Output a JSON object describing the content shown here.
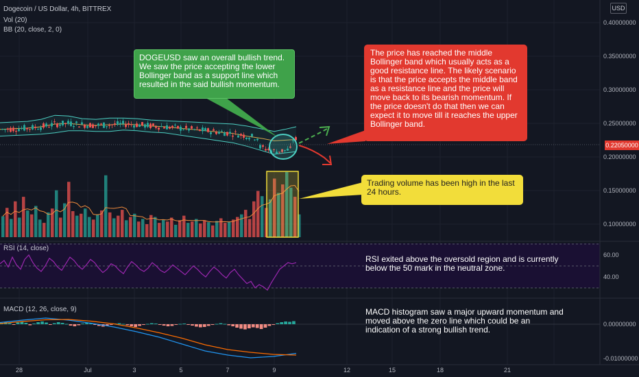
{
  "header": {
    "symbol_line": "Dogecoin / US Dollar, 4h, BITTREX",
    "vol_line": "Vol (20)",
    "bb_line": "BB (20, close, 2, 0)",
    "rsi_line": "RSI (14, close)",
    "macd_line": "MACD (12, 26, close, 9)",
    "currency_button": "USD"
  },
  "colors": {
    "background": "#131722",
    "bull": "#26a69a",
    "bear": "#ef5350",
    "band": "#4dd0c3",
    "middle_band": "#d6a84c",
    "rsi_line": "#9c27b0",
    "rsi_bg": "#1a1033",
    "annotation_green": "#3fa24a",
    "annotation_red": "#e2392f",
    "annotation_yellow": "#f2dd3a"
  },
  "annotations": {
    "green": "DOGEUSD saw an overall bullish trend. We saw the price accepting the lower Bollinger band as a support line which resulted in the said bullish momentum.",
    "red": "The price has reached the middle Bollinger band which usually acts as a good resistance line. The likely scenario is that the price accepts the middle band as a resistance line and the price will move back to its bearish momentum. If the price doesn't do that then we can expect it to move till it reaches the upper Bollinger band.",
    "yellow": "Trading volume has been high in the last 24 hours.",
    "rsi": "RSI exited above the oversold region and is currently below the 50 mark in the neutral zone.",
    "macd": "MACD histogram saw a major upward momentum and moved above the zero line which could be an indication of a strong bullish trend."
  },
  "chart_data": [
    {
      "type": "line",
      "title": "Dogecoin / US Dollar, 4h, BITTREX",
      "description_kind": "candlestick with Bollinger Bands",
      "x_ticks": [
        "28",
        "Jul",
        "3",
        "5",
        "7",
        "9",
        "12",
        "15",
        "18",
        "21"
      ],
      "y_ticks": [
        "0.40000000",
        "0.35000000",
        "0.30000000",
        "0.25000000",
        "0.20000000",
        "0.15000000",
        "0.10000000"
      ],
      "ylim": [
        0.08,
        0.42
      ],
      "last_price": "0.22050000",
      "series": [
        {
          "name": "BB (20, close, 2, 0)",
          "points": [
            [
              0,
              0.251
            ],
            [
              20,
              0.252
            ],
            [
              40,
              0.253
            ],
            [
              60,
              0.256
            ],
            [
              80,
              0.262
            ],
            [
              100,
              0.261
            ],
            [
              120,
              0.257
            ],
            [
              140,
              0.256
            ],
            [
              160,
              0.258
            ],
            [
              180,
              0.258
            ],
            [
              200,
              0.257
            ],
            [
              220,
              0.255
            ],
            [
              240,
              0.254
            ],
            [
              260,
              0.253
            ],
            [
              280,
              0.252
            ],
            [
              300,
              0.251
            ],
            [
              320,
              0.25
            ],
            [
              340,
              0.249
            ],
            [
              360,
              0.246
            ],
            [
              380,
              0.242
            ],
            [
              400,
              0.238
            ],
            [
              415,
              0.241
            ],
            [
              432,
              0.245
            ]
          ]
        },
        {
          "name": "middle",
          "points": [
            [
              0,
              0.241
            ],
            [
              20,
              0.242
            ],
            [
              40,
              0.243
            ],
            [
              60,
              0.245
            ],
            [
              80,
              0.249
            ],
            [
              100,
              0.25
            ],
            [
              120,
              0.248
            ],
            [
              140,
              0.247
            ],
            [
              160,
              0.248
            ],
            [
              180,
              0.249
            ],
            [
              200,
              0.248
            ],
            [
              220,
              0.246
            ],
            [
              240,
              0.245
            ],
            [
              260,
              0.243
            ],
            [
              280,
              0.241
            ],
            [
              300,
              0.239
            ],
            [
              320,
              0.237
            ],
            [
              340,
              0.235
            ],
            [
              360,
              0.231
            ],
            [
              380,
              0.228
            ],
            [
              400,
              0.224
            ],
            [
              415,
              0.225
            ],
            [
              432,
              0.226
            ]
          ]
        },
        {
          "name": "lower",
          "points": [
            [
              0,
              0.231
            ],
            [
              20,
              0.232
            ],
            [
              40,
              0.233
            ],
            [
              60,
              0.234
            ],
            [
              80,
              0.236
            ],
            [
              100,
              0.239
            ],
            [
              120,
              0.239
            ],
            [
              140,
              0.238
            ],
            [
              160,
              0.238
            ],
            [
              180,
              0.24
            ],
            [
              200,
              0.239
            ],
            [
              220,
              0.237
            ],
            [
              240,
              0.236
            ],
            [
              260,
              0.233
            ],
            [
              280,
              0.23
            ],
            [
              300,
              0.227
            ],
            [
              320,
              0.224
            ],
            [
              340,
              0.221
            ],
            [
              360,
              0.216
            ],
            [
              380,
              0.21
            ],
            [
              400,
              0.204
            ],
            [
              415,
              0.206
            ],
            [
              432,
              0.208
            ]
          ]
        }
      ]
    },
    {
      "type": "bar",
      "title": "Vol (20)",
      "values_relative": [
        0.32,
        0.45,
        0.28,
        0.55,
        0.3,
        0.62,
        0.41,
        0.35,
        0.48,
        0.27,
        0.22,
        0.38,
        0.44,
        0.72,
        0.3,
        0.52,
        0.85,
        0.4,
        0.33,
        0.36,
        0.44,
        0.31,
        0.27,
        0.35,
        0.41,
        0.95,
        0.38,
        0.29,
        0.33,
        0.42,
        0.26,
        0.31,
        0.36,
        0.24,
        0.28,
        0.2,
        0.34,
        0.31,
        0.22,
        0.27,
        0.24,
        0.3,
        0.19,
        0.26,
        0.33,
        0.22,
        0.24,
        0.28,
        0.21,
        0.26,
        0.23,
        0.18,
        0.25,
        0.29,
        0.22,
        0.24,
        0.27,
        0.31,
        0.35,
        0.42,
        0.28,
        0.55,
        0.71,
        0.63,
        0.45,
        0.58,
        0.9,
        0.68,
        0.81,
        1.0,
        0.76,
        0.62,
        0.35
      ],
      "bull_flags": [
        1,
        0,
        1,
        0,
        1,
        0,
        1,
        0,
        1,
        1,
        0,
        1,
        0,
        1,
        0,
        1,
        0,
        0,
        1,
        0,
        1,
        1,
        0,
        1,
        0,
        1,
        0,
        1,
        0,
        0,
        1,
        0,
        1,
        0,
        1,
        0,
        0,
        1,
        0,
        1,
        0,
        0,
        1,
        0,
        0,
        1,
        0,
        1,
        0,
        0,
        1,
        0,
        1,
        0,
        0,
        1,
        0,
        0,
        1,
        0,
        0,
        0,
        0,
        1,
        0,
        1,
        0,
        1,
        0,
        1,
        1,
        0,
        1
      ]
    },
    {
      "type": "line",
      "title": "RSI (14, close)",
      "y_ticks": [
        "60.00",
        "40.00"
      ],
      "ylim": [
        20,
        80
      ],
      "bands": [
        70,
        50,
        30
      ],
      "values": [
        52,
        55,
        49,
        58,
        51,
        47,
        56,
        60,
        53,
        48,
        45,
        50,
        57,
        54,
        49,
        46,
        52,
        58,
        55,
        50,
        47,
        51,
        56,
        53,
        48,
        44,
        47,
        52,
        50,
        46,
        43,
        49,
        54,
        51,
        47,
        45,
        48,
        53,
        50,
        46,
        44,
        47,
        51,
        48,
        45,
        42,
        46,
        50,
        47,
        43,
        40,
        45,
        49,
        46,
        42,
        39,
        44,
        47,
        42,
        38,
        34,
        36,
        30,
        33,
        31,
        28,
        35,
        41,
        47,
        50,
        53,
        52,
        53
      ]
    },
    {
      "type": "bar",
      "title": "MACD (12, 26, close, 9)",
      "y_ticks": [
        "0.00000000",
        "-0.01000000"
      ],
      "ylim": [
        -0.0105,
        0.0015
      ],
      "histogram": [
        0.0004,
        0.0006,
        0.0003,
        -0.0002,
        0.0005,
        0.0007,
        0.0004,
        -0.0003,
        0.0002,
        0.0006,
        0.0008,
        0.0005,
        -0.0002,
        0.0003,
        0.0006,
        0.0004,
        0.0001,
        -0.0004,
        -0.0006,
        -0.0003,
        0.0002,
        0.0004,
        0.0003,
        -0.0002,
        -0.0005,
        -0.0007,
        -0.0004,
        -0.0001,
        0.0002,
        0.0003,
        0.0001,
        -0.0003,
        -0.0006,
        -0.0008,
        -0.0005,
        -0.0002,
        0.0001,
        0.0003,
        0.0002,
        -0.0001,
        -0.0004,
        -0.0006,
        -0.0005,
        -0.0002,
        0.0001,
        0.0002,
        -0.0001,
        -0.0004,
        -0.0007,
        -0.0009,
        -0.0008,
        -0.0005,
        -0.0002,
        0.0001,
        0.0003,
        0.0001,
        -0.0003,
        -0.0006,
        -0.001,
        -0.0013,
        -0.0015,
        -0.0012,
        -0.0009,
        -0.0011,
        -0.0014,
        -0.001,
        -0.0005,
        -0.0001,
        0.0003,
        0.0006,
        0.0008,
        0.0007,
        0.0009
      ],
      "macd_line": [
        0.0005,
        0.0012,
        0.0018,
        0.0012,
        0.0003,
        -0.0008,
        -0.0022,
        -0.0038,
        -0.0058,
        -0.0078,
        -0.009,
        -0.0098,
        -0.0094,
        -0.0085
      ],
      "signal_line": [
        0.0002,
        0.0008,
        0.0013,
        0.0014,
        0.0009,
        0.0001,
        -0.0011,
        -0.0025,
        -0.0041,
        -0.006,
        -0.0074,
        -0.0082,
        -0.0088,
        -0.009
      ]
    }
  ]
}
